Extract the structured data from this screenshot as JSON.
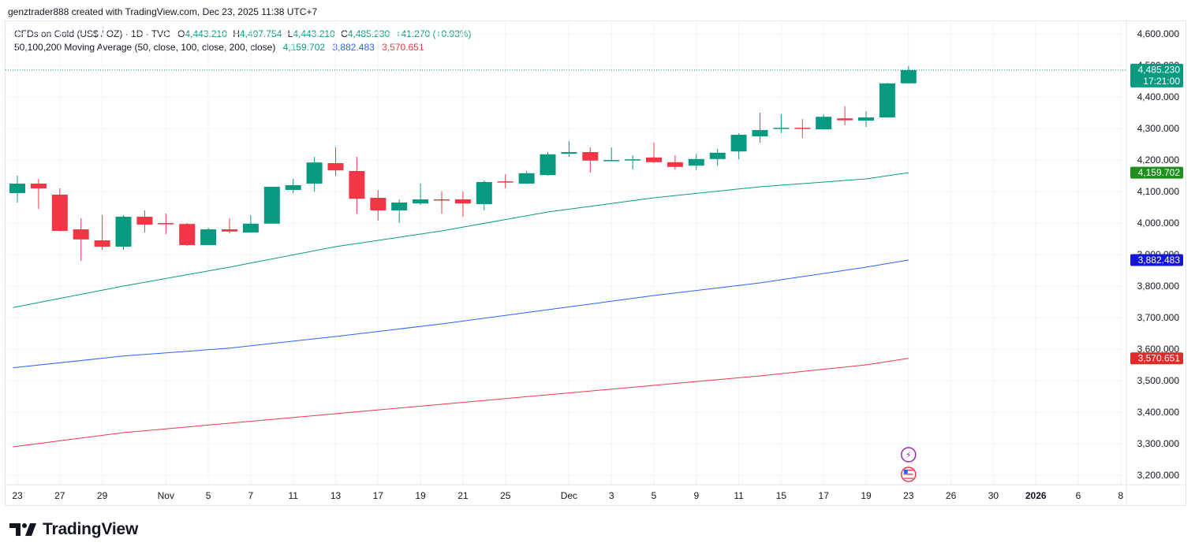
{
  "header": {
    "credit": "genztrader888 created with TradingView.com, Dec 23, 2025 11:38 UTC+7"
  },
  "legend": {
    "symbol": "CFDs on Gold (US$ / OZ) · 1D · TVC",
    "o_label": "O",
    "o": "4,443.210",
    "h_label": "H",
    "h": "4,497.754",
    "l_label": "L",
    "l": "4,443.210",
    "c_label": "C",
    "c": "4,485.230",
    "change": "+41.270 (+0.93%)",
    "ma_title": "50,100,200 Moving Average (50, close, 100, close, 200, close)",
    "ma50": "4,159.702",
    "ma100": "3,882.483",
    "ma200": "3,570.651"
  },
  "brand": {
    "name": "TradingView",
    "icon": "tradingview-logo-icon"
  },
  "colors": {
    "up": "#089981",
    "down": "#f23645",
    "ma50": "#089981",
    "ma100": "#2962ff",
    "ma200": "#f23645",
    "grid": "#f0f3fa",
    "price_label_bg": "#089981",
    "ma50_label_bg": "#1e8f1e",
    "ma100_label_bg": "#1515d6",
    "ma200_label_bg": "#e02b2b"
  },
  "chart_data": {
    "type": "candlestick",
    "title": "CFDs on Gold (US$ / OZ) · 1D · TVC",
    "ylim": [
      3180,
      4640
    ],
    "grid": true,
    "y_ticks": [
      3200,
      3300,
      3400,
      3500,
      3600,
      3700,
      3800,
      3900,
      4000,
      4100,
      4200,
      4300,
      4400,
      4500,
      4600
    ],
    "y_tick_labels": [
      "3,200.000",
      "3,300.000",
      "3,400.000",
      "3,500.000",
      "3,600.000",
      "3,700.000",
      "3,800.000",
      "3,900.000",
      "4,000.000",
      "4,100.000",
      "4,200.000",
      "4,300.000",
      "4,400.000",
      "4,500.000",
      "4,600.000"
    ],
    "x_ticks": [
      {
        "label": "23",
        "i": 0
      },
      {
        "label": "27",
        "i": 2
      },
      {
        "label": "29",
        "i": 4
      },
      {
        "label": "Nov",
        "i": 7
      },
      {
        "label": "5",
        "i": 9
      },
      {
        "label": "7",
        "i": 11
      },
      {
        "label": "11",
        "i": 13
      },
      {
        "label": "13",
        "i": 15
      },
      {
        "label": "17",
        "i": 17
      },
      {
        "label": "19",
        "i": 19
      },
      {
        "label": "21",
        "i": 21
      },
      {
        "label": "25",
        "i": 23
      },
      {
        "label": "Dec",
        "i": 26
      },
      {
        "label": "3",
        "i": 28
      },
      {
        "label": "5",
        "i": 30
      },
      {
        "label": "9",
        "i": 32
      },
      {
        "label": "11",
        "i": 34
      },
      {
        "label": "15",
        "i": 36
      },
      {
        "label": "17",
        "i": 38
      },
      {
        "label": "19",
        "i": 40
      },
      {
        "label": "23",
        "i": 42
      },
      {
        "label": "26",
        "i": 44
      },
      {
        "label": "30",
        "i": 46
      },
      {
        "label": "2026",
        "i": 48
      },
      {
        "label": "6",
        "i": 50
      },
      {
        "label": "8",
        "i": 52
      }
    ],
    "candles": [
      {
        "i": 0,
        "o": 4095,
        "h": 4150,
        "l": 4065,
        "c": 4125
      },
      {
        "i": 1,
        "o": 4125,
        "h": 4140,
        "l": 4045,
        "c": 4110
      },
      {
        "i": 2,
        "o": 4090,
        "h": 4110,
        "l": 3975,
        "c": 3975
      },
      {
        "i": 3,
        "o": 3980,
        "h": 4015,
        "l": 3880,
        "c": 3948
      },
      {
        "i": 4,
        "o": 3945,
        "h": 4025,
        "l": 3915,
        "c": 3925
      },
      {
        "i": 5,
        "o": 3925,
        "h": 4025,
        "l": 3915,
        "c": 4020
      },
      {
        "i": 6,
        "o": 4020,
        "h": 4040,
        "l": 3970,
        "c": 3995
      },
      {
        "i": 7,
        "o": 4000,
        "h": 4030,
        "l": 3965,
        "c": 3996
      },
      {
        "i": 8,
        "o": 3997,
        "h": 4000,
        "l": 3928,
        "c": 3930
      },
      {
        "i": 9,
        "o": 3930,
        "h": 3985,
        "l": 3930,
        "c": 3980
      },
      {
        "i": 10,
        "o": 3980,
        "h": 4015,
        "l": 3967,
        "c": 3973
      },
      {
        "i": 11,
        "o": 3970,
        "h": 4025,
        "l": 3970,
        "c": 3998
      },
      {
        "i": 12,
        "o": 3998,
        "h": 4115,
        "l": 3998,
        "c": 4115
      },
      {
        "i": 13,
        "o": 4105,
        "h": 4140,
        "l": 4095,
        "c": 4120
      },
      {
        "i": 14,
        "o": 4125,
        "h": 4210,
        "l": 4100,
        "c": 4192
      },
      {
        "i": 15,
        "o": 4190,
        "h": 4240,
        "l": 4150,
        "c": 4167
      },
      {
        "i": 16,
        "o": 4165,
        "h": 4210,
        "l": 4030,
        "c": 4077
      },
      {
        "i": 17,
        "o": 4080,
        "h": 4105,
        "l": 4008,
        "c": 4040
      },
      {
        "i": 18,
        "o": 4040,
        "h": 4075,
        "l": 4000,
        "c": 4065
      },
      {
        "i": 19,
        "o": 4062,
        "h": 4125,
        "l": 4058,
        "c": 4075
      },
      {
        "i": 20,
        "o": 4075,
        "h": 4100,
        "l": 4030,
        "c": 4073
      },
      {
        "i": 21,
        "o": 4075,
        "h": 4100,
        "l": 4020,
        "c": 4062
      },
      {
        "i": 22,
        "o": 4060,
        "h": 4135,
        "l": 4040,
        "c": 4130
      },
      {
        "i": 23,
        "o": 4132,
        "h": 4155,
        "l": 4110,
        "c": 4130
      },
      {
        "i": 24,
        "o": 4125,
        "h": 4165,
        "l": 4125,
        "c": 4158
      },
      {
        "i": 25,
        "o": 4152,
        "h": 4225,
        "l": 4150,
        "c": 4218
      },
      {
        "i": 26,
        "o": 4220,
        "h": 4260,
        "l": 4210,
        "c": 4225
      },
      {
        "i": 27,
        "o": 4225,
        "h": 4240,
        "l": 4160,
        "c": 4198
      },
      {
        "i": 28,
        "o": 4198,
        "h": 4240,
        "l": 4196,
        "c": 4200
      },
      {
        "i": 29,
        "o": 4201,
        "h": 4215,
        "l": 4170,
        "c": 4202
      },
      {
        "i": 30,
        "o": 4208,
        "h": 4255,
        "l": 4190,
        "c": 4193
      },
      {
        "i": 31,
        "o": 4193,
        "h": 4215,
        "l": 4170,
        "c": 4178
      },
      {
        "i": 32,
        "o": 4182,
        "h": 4220,
        "l": 4168,
        "c": 4203
      },
      {
        "i": 33,
        "o": 4203,
        "h": 4235,
        "l": 4182,
        "c": 4223
      },
      {
        "i": 34,
        "o": 4227,
        "h": 4285,
        "l": 4202,
        "c": 4280
      },
      {
        "i": 35,
        "o": 4275,
        "h": 4350,
        "l": 4255,
        "c": 4295
      },
      {
        "i": 36,
        "o": 4299,
        "h": 4345,
        "l": 4285,
        "c": 4302
      },
      {
        "i": 37,
        "o": 4302,
        "h": 4330,
        "l": 4270,
        "c": 4299
      },
      {
        "i": 38,
        "o": 4297,
        "h": 4345,
        "l": 4297,
        "c": 4337
      },
      {
        "i": 39,
        "o": 4332,
        "h": 4370,
        "l": 4310,
        "c": 4326
      },
      {
        "i": 40,
        "o": 4325,
        "h": 4355,
        "l": 4305,
        "c": 4335
      },
      {
        "i": 41,
        "o": 4335,
        "h": 4445,
        "l": 4335,
        "c": 4443
      },
      {
        "i": 42,
        "o": 4443.21,
        "h": 4497.754,
        "l": 4443.21,
        "c": 4485.23
      }
    ],
    "series": [
      {
        "name": "MA 50",
        "x": [
          -0.2,
          5,
          10,
          15,
          20,
          25,
          30,
          35,
          40,
          42
        ],
        "values": [
          3732,
          3800,
          3860,
          3925,
          3975,
          4035,
          4080,
          4115,
          4140,
          4159.702
        ]
      },
      {
        "name": "MA 100",
        "x": [
          -0.2,
          5,
          10,
          15,
          20,
          25,
          30,
          35,
          40,
          42
        ],
        "values": [
          3541,
          3578,
          3603,
          3640,
          3680,
          3725,
          3770,
          3810,
          3860,
          3882.483
        ]
      },
      {
        "name": "MA 200",
        "x": [
          -0.2,
          5,
          10,
          15,
          20,
          25,
          30,
          35,
          40,
          42
        ],
        "values": [
          3290,
          3335,
          3365,
          3395,
          3425,
          3455,
          3485,
          3515,
          3550,
          3570.651
        ]
      }
    ],
    "last_price": {
      "value": 4485.23,
      "label": "4,485.230",
      "countdown": "17:21:00"
    },
    "ma_labels": [
      {
        "value": 4159.702,
        "label": "4,159.702",
        "series": "MA 50"
      },
      {
        "value": 3882.483,
        "label": "3,882.483",
        "series": "MA 100"
      },
      {
        "value": 3570.651,
        "label": "3,570.651",
        "series": "MA 200"
      }
    ],
    "event_icons": [
      {
        "name": "lightning-event-icon",
        "i": 42,
        "glyph": "⚡"
      },
      {
        "name": "us-flag-event-icon",
        "i": 42
      }
    ]
  }
}
